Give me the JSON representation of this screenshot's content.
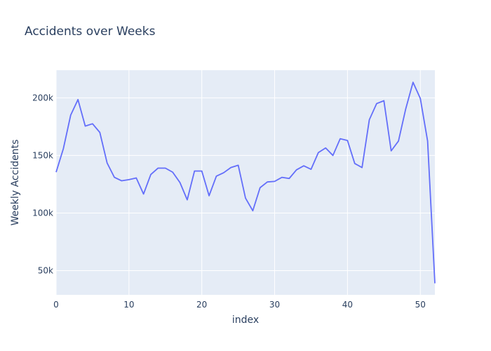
{
  "chart_data": {
    "type": "line",
    "title": "Accidents over Weeks",
    "xlabel": "index",
    "ylabel": "Weekly Accidents",
    "xlim": [
      0,
      52
    ],
    "ylim": [
      29000,
      224000
    ],
    "grid": true,
    "x_ticks": [
      0,
      10,
      20,
      30,
      40,
      50
    ],
    "x_tick_labels": [
      "0",
      "10",
      "20",
      "30",
      "40",
      "50"
    ],
    "y_ticks": [
      50000,
      100000,
      150000,
      200000
    ],
    "y_tick_labels": [
      "50k",
      "100k",
      "150k",
      "200k"
    ],
    "x": [
      0,
      1,
      2,
      3,
      4,
      5,
      6,
      7,
      8,
      9,
      10,
      11,
      12,
      13,
      14,
      15,
      16,
      17,
      18,
      19,
      20,
      21,
      22,
      23,
      24,
      25,
      26,
      27,
      28,
      29,
      30,
      31,
      32,
      33,
      34,
      35,
      36,
      37,
      38,
      39,
      40,
      41,
      42,
      43,
      44,
      45,
      46,
      47,
      48,
      49,
      50,
      51,
      52
    ],
    "series": [
      {
        "values": [
          135500,
          156000,
          185000,
          198500,
          175500,
          177500,
          170000,
          143500,
          131000,
          128000,
          129000,
          130500,
          116500,
          133500,
          139000,
          139000,
          135500,
          126500,
          111500,
          136500,
          136500,
          115000,
          132000,
          135000,
          139500,
          141500,
          113000,
          102000,
          122000,
          127000,
          127500,
          131000,
          130000,
          137500,
          141000,
          138000,
          152500,
          156500,
          150000,
          164500,
          163000,
          143000,
          139500,
          181000,
          195000,
          197500,
          154000,
          162500,
          190500,
          213500,
          199500,
          162500,
          39000
        ],
        "color": "#636efa"
      }
    ],
    "plot_bg": "#e5ecf6",
    "grid_color": "#ffffff",
    "text_color": "#2a3f5f"
  }
}
